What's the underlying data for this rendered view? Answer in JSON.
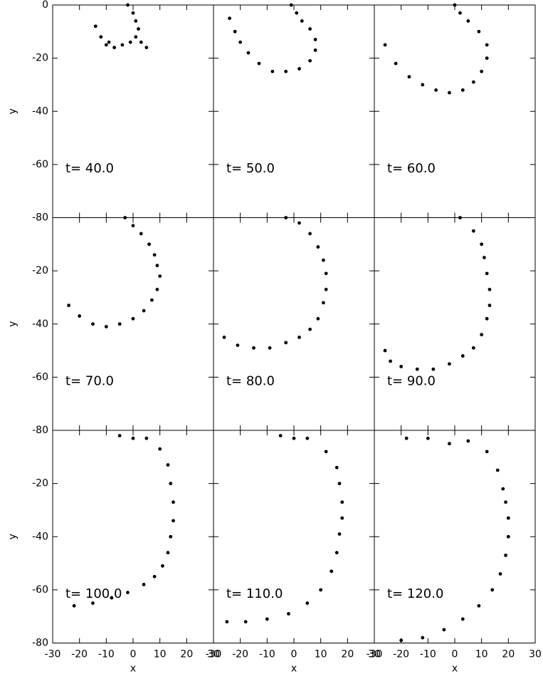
{
  "chart_data": [
    {
      "type": "scatter",
      "annotation": "t= 40.0",
      "annotation_color": "#ff0000",
      "color": "#000000",
      "ylabel": "y",
      "x": [
        -2,
        0,
        1,
        2,
        1,
        -1,
        -4,
        -7,
        -10,
        -12,
        -14,
        -9,
        3,
        5
      ],
      "y": [
        0,
        -3,
        -6,
        -9,
        -12,
        -14,
        -15,
        -16,
        -15,
        -12,
        -8,
        -14,
        -14,
        -16
      ],
      "xlim": [
        -30,
        30
      ],
      "ylim": [
        -80,
        0
      ],
      "xticks": [
        -30,
        -20,
        -10,
        0,
        10,
        20,
        30
      ],
      "yticks": [
        0,
        -20,
        -40,
        -60,
        -80
      ]
    },
    {
      "type": "scatter",
      "annotation": "t= 50.0",
      "annotation_color": "#ff0000",
      "color": "#000000",
      "x": [
        -1,
        1,
        3,
        6,
        8,
        8,
        6,
        2,
        -3,
        -8,
        -13,
        -17,
        -20,
        -22,
        -24
      ],
      "y": [
        0,
        -3,
        -6,
        -9,
        -13,
        -17,
        -21,
        -24,
        -25,
        -25,
        -22,
        -18,
        -14,
        -10,
        -5
      ],
      "xlim": [
        -30,
        30
      ],
      "ylim": [
        -80,
        0
      ],
      "xticks": [
        -30,
        -20,
        -10,
        0,
        10,
        20,
        30
      ],
      "yticks": [
        0,
        -20,
        -40,
        -60,
        -80
      ]
    },
    {
      "type": "scatter",
      "annotation": "t= 60.0",
      "annotation_color": "#ff0000",
      "color": "#000000",
      "x": [
        0,
        2,
        5,
        9,
        12,
        12,
        10,
        7,
        3,
        -2,
        -7,
        -12,
        -17,
        -22,
        -26
      ],
      "y": [
        0,
        -3,
        -6,
        -10,
        -15,
        -20,
        -25,
        -29,
        -32,
        -33,
        -32,
        -30,
        -27,
        -22,
        -15
      ],
      "xlim": [
        -30,
        30
      ],
      "ylim": [
        -80,
        0
      ],
      "xticks": [
        -30,
        -20,
        -10,
        0,
        10,
        20,
        30
      ],
      "yticks": [
        0,
        -20,
        -40,
        -60,
        -80
      ]
    },
    {
      "type": "scatter",
      "annotation": "t= 70.0",
      "annotation_color": "#ff0000",
      "color": "#000000",
      "ylabel": "y",
      "x": [
        -3,
        0,
        3,
        6,
        8,
        9,
        10,
        9,
        7,
        4,
        0,
        -5,
        -10,
        -15,
        -20,
        -24
      ],
      "y": [
        0,
        -3,
        -6,
        -10,
        -14,
        -18,
        -22,
        -27,
        -31,
        -35,
        -38,
        -40,
        -41,
        -40,
        -37,
        -33
      ],
      "xlim": [
        -30,
        30
      ],
      "ylim": [
        -80,
        0
      ],
      "xticks": [
        -30,
        -20,
        -10,
        0,
        10,
        20,
        30
      ],
      "yticks": [
        0,
        -20,
        -40,
        -60,
        -80
      ]
    },
    {
      "type": "scatter",
      "annotation": "t= 80.0",
      "annotation_color": "#ff0000",
      "color": "#000000",
      "x": [
        -3,
        2,
        6,
        9,
        11,
        12,
        12,
        11,
        9,
        6,
        2,
        -3,
        -9,
        -15,
        -21,
        -26
      ],
      "y": [
        0,
        -2,
        -6,
        -11,
        -16,
        -21,
        -27,
        -32,
        -38,
        -42,
        -45,
        -47,
        -49,
        -49,
        -48,
        -45
      ],
      "xlim": [
        -30,
        30
      ],
      "ylim": [
        -80,
        0
      ],
      "xticks": [
        -30,
        -20,
        -10,
        0,
        10,
        20,
        30
      ],
      "yticks": [
        0,
        -20,
        -40,
        -60,
        -80
      ]
    },
    {
      "type": "scatter",
      "annotation": "t= 90.0",
      "annotation_color": "#ff0000",
      "color": "#000000",
      "x": [
        2,
        7,
        10,
        11,
        12,
        13,
        13,
        12,
        10,
        7,
        3,
        -2,
        -8,
        -14,
        -20,
        -24,
        -26
      ],
      "y": [
        0,
        -5,
        -10,
        -15,
        -21,
        -27,
        -33,
        -38,
        -44,
        -49,
        -52,
        -55,
        -57,
        -57,
        -56,
        -54,
        -50
      ],
      "xlim": [
        -30,
        30
      ],
      "ylim": [
        -80,
        0
      ],
      "xticks": [
        -30,
        -20,
        -10,
        0,
        10,
        20,
        30
      ],
      "yticks": [
        0,
        -20,
        -40,
        -60,
        -80
      ]
    },
    {
      "type": "scatter",
      "annotation": "t= 100.0",
      "annotation_color": "#ff0000",
      "color": "#000000",
      "xlabel": "x",
      "ylabel": "y",
      "x": [
        -5,
        0,
        5,
        10,
        13,
        14,
        15,
        15,
        14,
        13,
        11,
        8,
        4,
        -2,
        -8,
        -15,
        -22
      ],
      "y": [
        -2,
        -3,
        -3,
        -7,
        -13,
        -20,
        -27,
        -34,
        -40,
        -46,
        -51,
        -55,
        -58,
        -61,
        -63,
        -65,
        -66
      ],
      "xlim": [
        -30,
        30
      ],
      "ylim": [
        -80,
        0
      ],
      "xticks": [
        -30,
        -20,
        -10,
        0,
        10,
        20,
        30
      ],
      "yticks": [
        0,
        -20,
        -40,
        -60,
        -80
      ]
    },
    {
      "type": "scatter",
      "annotation": "t= 110.0",
      "annotation_color": "#ff0000",
      "color": "#000000",
      "xlabel": "x",
      "x": [
        -5,
        0,
        5,
        12,
        16,
        17,
        18,
        18,
        17,
        16,
        14,
        10,
        5,
        -2,
        -10,
        -18,
        -25
      ],
      "y": [
        -2,
        -3,
        -3,
        -8,
        -14,
        -20,
        -27,
        -33,
        -39,
        -46,
        -53,
        -60,
        -65,
        -69,
        -71,
        -72,
        -72
      ],
      "xlim": [
        -30,
        30
      ],
      "ylim": [
        -80,
        0
      ],
      "xticks": [
        -30,
        -20,
        -10,
        0,
        10,
        20,
        30
      ],
      "yticks": [
        0,
        -20,
        -40,
        -60,
        -80
      ]
    },
    {
      "type": "scatter",
      "annotation": "t= 120.0",
      "annotation_color": "#ff0000",
      "color": "#000000",
      "xlabel": "x",
      "x": [
        -18,
        -10,
        -2,
        5,
        12,
        16,
        18,
        19,
        20,
        20,
        19,
        17,
        14,
        9,
        3,
        -4,
        -12,
        -20
      ],
      "y": [
        -3,
        -3,
        -5,
        -4,
        -8,
        -15,
        -22,
        -27,
        -33,
        -40,
        -47,
        -54,
        -60,
        -66,
        -71,
        -75,
        -78,
        -79
      ],
      "xlim": [
        -30,
        30
      ],
      "ylim": [
        -80,
        0
      ],
      "xticks": [
        -30,
        -20,
        -10,
        0,
        10,
        20,
        30
      ],
      "yticks": [
        0,
        -20,
        -40,
        -60,
        -80
      ]
    }
  ]
}
